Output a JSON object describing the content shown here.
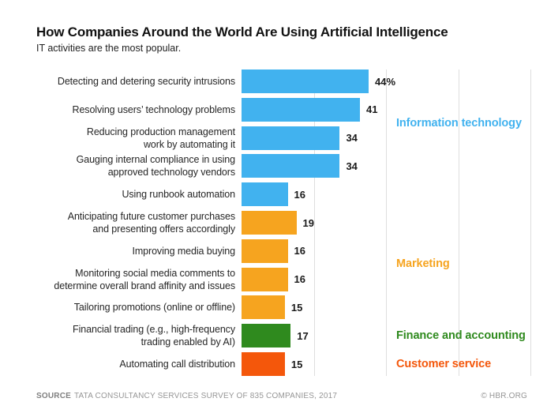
{
  "chart_data": {
    "type": "bar",
    "orientation": "horizontal",
    "title": "How Companies Around the World Are Using Artificial Intelligence",
    "subtitle": "IT activities are the most popular.",
    "unit": "percent",
    "xlim": [
      0,
      100
    ],
    "grid": true,
    "gridlines_at": [
      25,
      50,
      75,
      100
    ],
    "legend_position": "right",
    "categories": [
      "Detecting and detering security intrusions",
      "Resolving users’ technology problems",
      "Reducing production management\nwork by automating it",
      "Gauging internal compliance in using\napproved technology vendors",
      "Using runbook automation",
      "Anticipating future customer purchases\nand presenting offers accordingly",
      "Improving media buying",
      "Monitoring social media comments to\ndetermine overall brand affinity and issues",
      "Tailoring promotions (online or offline)",
      "Financial trading (e.g., high-frequency\ntrading enabled by AI)",
      "Automating call distribution"
    ],
    "values": [
      44,
      41,
      34,
      34,
      16,
      19,
      16,
      16,
      15,
      17,
      15
    ],
    "display_values": [
      "44%",
      "41",
      "34",
      "34",
      "16",
      "19",
      "16",
      "16",
      "15",
      "17",
      "15"
    ],
    "bar_group": [
      0,
      0,
      0,
      0,
      0,
      1,
      1,
      1,
      1,
      2,
      3
    ],
    "groups": [
      {
        "name": "Information technology",
        "color": "#41b2ef"
      },
      {
        "name": "Marketing",
        "color": "#f6a41f"
      },
      {
        "name": "Finance and accounting",
        "color": "#2f8a1e"
      },
      {
        "name": "Customer service",
        "color": "#f4570b"
      }
    ]
  },
  "footer": {
    "source_label": "SOURCE",
    "source_text": "TATA CONSULTANCY SERVICES SURVEY OF 835 COMPANIES, 2017",
    "credit": "© HBR.ORG"
  }
}
